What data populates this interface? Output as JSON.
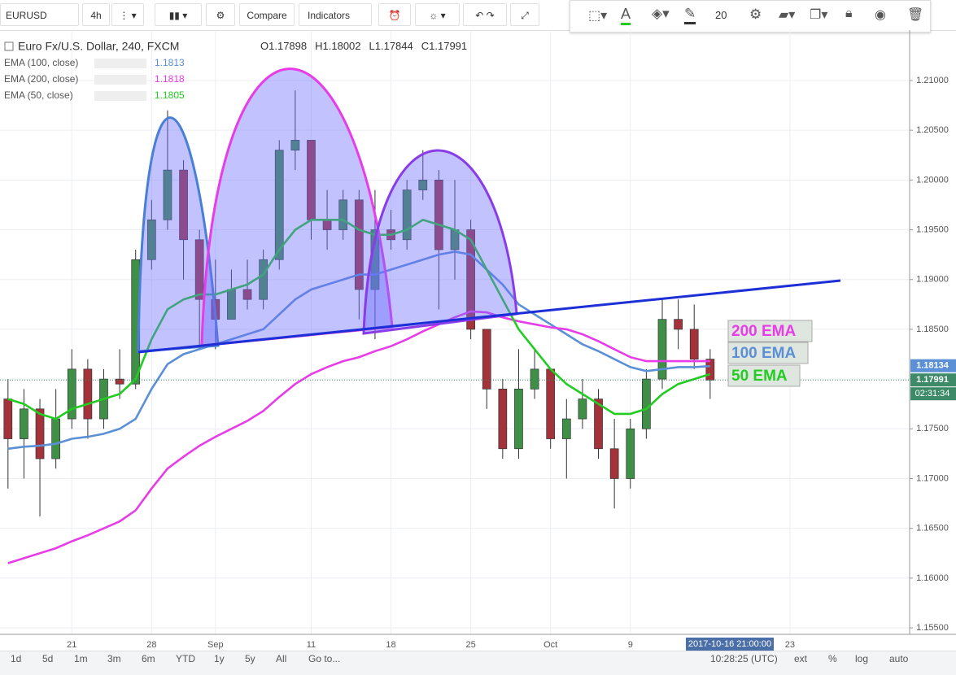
{
  "toolbar": {
    "symbol": "EURUSD",
    "interval": "4h",
    "compare": "Compare",
    "indicators": "Indicators",
    "font_size": "20"
  },
  "legend": {
    "title": "Euro Fx/U.S. Dollar, 240, FXCM",
    "ohlc": [
      {
        "label": "O",
        "value": 1.17898
      },
      {
        "label": "H",
        "value": 1.18002
      },
      {
        "label": "L",
        "value": 1.17844
      },
      {
        "label": "C",
        "value": 1.17991
      }
    ]
  },
  "chart_data": {
    "type": "candlestick",
    "categories": [
      null,
      null,
      null,
      null,
      "21",
      null,
      null,
      null,
      null,
      "28",
      null,
      null,
      null,
      "Sep",
      null,
      null,
      null,
      null,
      null,
      "11",
      null,
      null,
      null,
      null,
      "18",
      null,
      null,
      null,
      null,
      "25",
      null,
      null,
      null,
      null,
      "Oct",
      null,
      null,
      null,
      null,
      "9",
      null,
      null,
      null,
      null,
      null,
      null,
      null,
      null,
      null,
      "23",
      null,
      null,
      null,
      null,
      null,
      null,
      null
    ],
    "open": [
      1.178,
      1.174,
      1.177,
      1.172,
      1.176,
      1.181,
      1.176,
      1.18,
      1.1795,
      1.192,
      1.196,
      1.201,
      1.194,
      1.188,
      1.186,
      1.189,
      1.188,
      1.192,
      1.203,
      1.204,
      1.196,
      1.195,
      1.198,
      1.189,
      1.195,
      1.194,
      1.199,
      1.2,
      1.193,
      1.195,
      1.185,
      1.179,
      1.173,
      1.179,
      1.181,
      1.174,
      1.176,
      1.178,
      1.173,
      1.17,
      1.175,
      1.18,
      1.186,
      1.185,
      1.182,
      null,
      null,
      null,
      null,
      null,
      null,
      null,
      null,
      null,
      null,
      null,
      null
    ],
    "high": [
      1.18,
      1.179,
      1.178,
      1.179,
      1.183,
      1.182,
      1.181,
      1.183,
      1.193,
      1.198,
      1.207,
      1.202,
      1.195,
      1.192,
      1.191,
      1.192,
      1.193,
      1.204,
      1.209,
      1.204,
      1.199,
      1.199,
      1.199,
      1.199,
      1.197,
      1.2,
      1.203,
      1.201,
      1.2,
      1.196,
      1.185,
      1.18,
      1.183,
      1.183,
      1.181,
      1.178,
      1.18,
      1.179,
      1.176,
      1.176,
      1.181,
      1.188,
      1.188,
      1.1875,
      1.183,
      null,
      null,
      null,
      null,
      null,
      null,
      null,
      null,
      null,
      null,
      null,
      null
    ],
    "low": [
      1.169,
      1.17,
      1.1662,
      1.171,
      1.175,
      1.174,
      1.175,
      1.178,
      1.179,
      1.191,
      1.195,
      1.19,
      1.183,
      1.183,
      1.186,
      1.187,
      1.187,
      1.191,
      1.201,
      1.194,
      1.193,
      1.194,
      1.186,
      1.184,
      1.193,
      1.193,
      1.198,
      1.187,
      1.19,
      1.184,
      1.177,
      1.172,
      1.172,
      1.178,
      1.173,
      1.17,
      1.175,
      1.172,
      1.167,
      1.169,
      1.174,
      1.179,
      1.183,
      1.181,
      1.178,
      null,
      null,
      null,
      null,
      null,
      null,
      null,
      null,
      null,
      null,
      null,
      null
    ],
    "close": [
      1.174,
      1.177,
      1.172,
      1.176,
      1.181,
      1.176,
      1.18,
      1.1795,
      1.192,
      1.196,
      1.201,
      1.194,
      1.188,
      1.186,
      1.189,
      1.188,
      1.192,
      1.203,
      1.204,
      1.196,
      1.195,
      1.198,
      1.189,
      1.195,
      1.194,
      1.199,
      1.2,
      1.193,
      1.195,
      1.185,
      1.179,
      1.173,
      1.179,
      1.181,
      1.174,
      1.176,
      1.178,
      1.173,
      1.17,
      1.175,
      1.18,
      1.186,
      1.185,
      1.182,
      1.1799,
      null,
      null,
      null,
      null,
      null,
      null,
      null,
      null,
      null,
      null,
      null,
      null
    ],
    "up_color": "#3f8f46",
    "down_color": "#a3323a",
    "series": [
      {
        "name": "EMA (100, close)",
        "color": "#5b8fd6",
        "values": [
          1.173,
          1.1732,
          1.1733,
          1.1735,
          1.174,
          1.1742,
          1.1745,
          1.175,
          1.176,
          1.179,
          1.1815,
          1.1825,
          1.183,
          1.1835,
          1.184,
          1.1845,
          1.185,
          1.1865,
          1.188,
          1.189,
          1.1895,
          1.19,
          1.1905,
          1.1905,
          1.191,
          1.1915,
          1.192,
          1.1925,
          1.1928,
          1.1925,
          1.191,
          1.1895,
          1.1875,
          1.1865,
          1.1855,
          1.1845,
          1.1835,
          1.1828,
          1.182,
          1.1812,
          1.1808,
          1.181,
          1.1812,
          1.1812,
          1.1813,
          null,
          null,
          null,
          null,
          null,
          null,
          null,
          null,
          null,
          null,
          null,
          null
        ]
      },
      {
        "name": "EMA (200, close)",
        "color": "#e83ce8",
        "values": [
          1.1615,
          1.162,
          1.1625,
          1.163,
          1.1637,
          1.1643,
          1.165,
          1.1657,
          1.1668,
          1.169,
          1.171,
          1.1722,
          1.1733,
          1.1742,
          1.175,
          1.1758,
          1.1768,
          1.1782,
          1.1795,
          1.1805,
          1.1812,
          1.1818,
          1.1822,
          1.1828,
          1.1833,
          1.184,
          1.1848,
          1.1855,
          1.1862,
          1.1868,
          1.1867,
          1.1862,
          1.1858,
          1.1855,
          1.1852,
          1.185,
          1.1845,
          1.1838,
          1.183,
          1.1822,
          1.1818,
          1.1818,
          1.1818,
          1.1818,
          1.1818,
          null,
          null,
          null,
          null,
          null,
          null,
          null,
          null,
          null,
          null,
          null,
          null
        ]
      },
      {
        "name": "EMA (50, close)",
        "color": "#22cc22",
        "values": [
          1.178,
          1.1775,
          1.1765,
          1.176,
          1.177,
          1.1775,
          1.178,
          1.1785,
          1.18,
          1.184,
          1.187,
          1.188,
          1.1885,
          1.1885,
          1.189,
          1.1895,
          1.1905,
          1.193,
          1.195,
          1.196,
          1.196,
          1.196,
          1.195,
          1.1945,
          1.1945,
          1.195,
          1.196,
          1.1955,
          1.195,
          1.194,
          1.191,
          1.188,
          1.185,
          1.183,
          1.181,
          1.1795,
          1.1785,
          1.1775,
          1.1765,
          1.1765,
          1.177,
          1.1785,
          1.1795,
          1.18,
          1.1805,
          null,
          null,
          null,
          null,
          null,
          null,
          null,
          null,
          null,
          null,
          null,
          null
        ]
      }
    ],
    "ylim": [
      1.15435,
      1.21482
    ],
    "yticks": [
      {
        "value": 1.155,
        "label": "1.15500"
      },
      {
        "value": 1.16,
        "label": "1.16000"
      },
      {
        "value": 1.165,
        "label": "1.16500"
      },
      {
        "value": 1.17,
        "label": "1.17000"
      },
      {
        "value": 1.175,
        "label": "1.17500"
      },
      {
        "value": 1.18,
        "label": "1.18000"
      },
      {
        "value": 1.185,
        "label": "1.18500"
      },
      {
        "value": 1.19,
        "label": "1.19000"
      },
      {
        "value": 1.195,
        "label": "1.19500"
      },
      {
        "value": 1.2,
        "label": "1.20000"
      },
      {
        "value": 1.205,
        "label": "1.20500"
      },
      {
        "value": 1.21,
        "label": "1.21000"
      }
    ],
    "grid": true,
    "price_labels": [
      {
        "value": 1.18134,
        "color": "#5b8fd6"
      },
      {
        "value": 1.17991,
        "color": "#3d8a68"
      }
    ],
    "countdown": "02:31:34",
    "crosshair_label": "2017-10-16 21:00:00",
    "annotations": [
      {
        "text": "200 EMA",
        "color": "#e83ce8"
      },
      {
        "text": "100 EMA",
        "color": "#5b8fd6"
      },
      {
        "text": "50 EMA",
        "color": "#22cc22"
      }
    ]
  },
  "bottom_bar": {
    "ranges": [
      "1d",
      "5d",
      "1m",
      "3m",
      "6m",
      "YTD",
      "1y",
      "5y",
      "All"
    ],
    "goto": "Go to...",
    "clock": "10:28:25 (UTC)",
    "options": [
      "ext",
      "%",
      "log",
      "auto"
    ]
  }
}
